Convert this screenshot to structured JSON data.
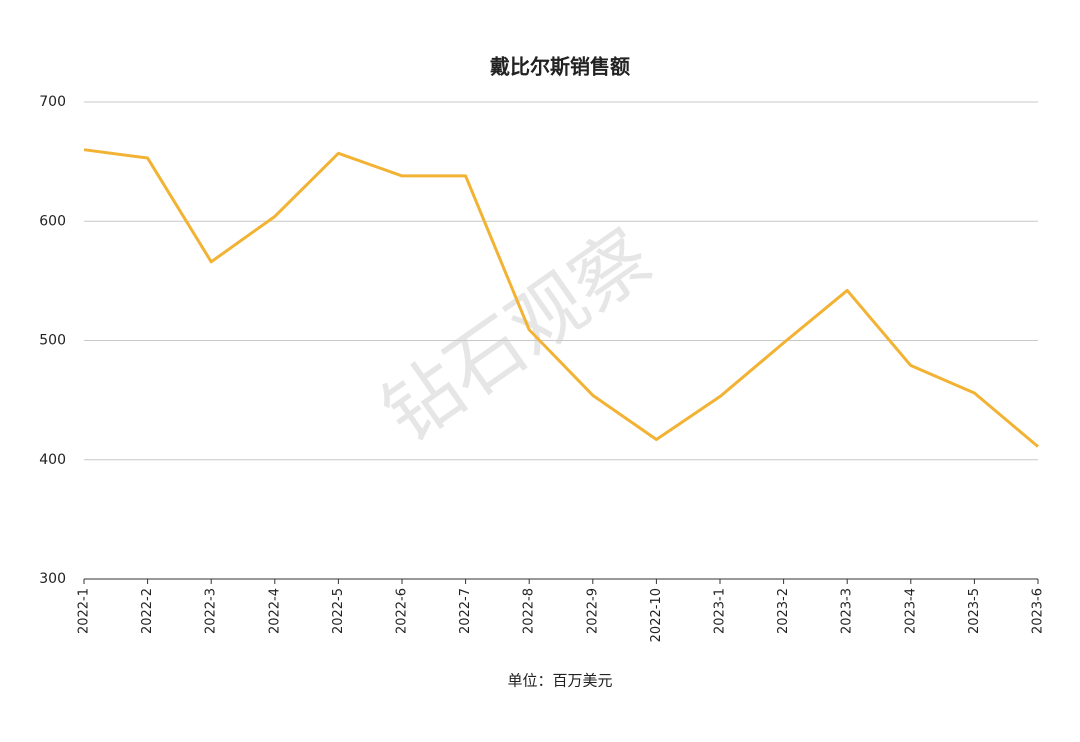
{
  "chart_data": {
    "type": "line",
    "title": "戴比尔斯销售额",
    "x_label": "单位：百万美元",
    "watermark": "钻石观察",
    "categories": [
      "2022-1",
      "2022-2",
      "2022-3",
      "2022-4",
      "2022-5",
      "2022-6",
      "2022-7",
      "2022-8",
      "2022-9",
      "2022-10",
      "2023-1",
      "2023-2",
      "2023-3",
      "2023-4",
      "2023-5",
      "2023-6"
    ],
    "series": [
      {
        "name": "销售额",
        "color": "#f2b233",
        "values": [
          660,
          653,
          566,
          604,
          657,
          638,
          638,
          509,
          454,
          417,
          453,
          498,
          542,
          479,
          456,
          411
        ]
      }
    ],
    "ylim": [
      300,
      700
    ],
    "yticks": [
      300,
      400,
      500,
      600,
      700
    ],
    "grid": true
  }
}
